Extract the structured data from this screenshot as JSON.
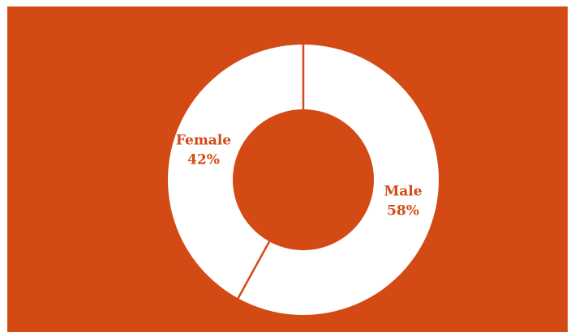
{
  "colors": {
    "background": "#d34a14",
    "slice": "#ffffff",
    "label": "#d34a14",
    "separator": "#d34a14"
  },
  "chart_data": {
    "type": "pie",
    "variant": "donut",
    "title": "",
    "slices": [
      {
        "name": "Male",
        "value": 58,
        "pct_label": "58%"
      },
      {
        "name": "Female",
        "value": 42,
        "pct_label": "42%"
      }
    ],
    "start_angle_deg": 0,
    "direction": "clockwise",
    "legend": "none",
    "labels": "on-slice"
  }
}
